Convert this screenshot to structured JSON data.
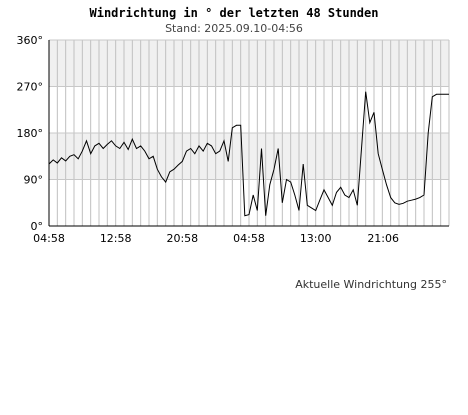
{
  "chart_data": {
    "type": "line",
    "title": "Windrichtung in ° der letzten 48 Stunden",
    "subtitle": "Stand: 2025.09.10-04:56",
    "xlabel": "",
    "ylabel": "",
    "ylim": [
      0,
      360
    ],
    "yticks": [
      {
        "value": 0,
        "label": "0°"
      },
      {
        "value": 90,
        "label": "90°"
      },
      {
        "value": 180,
        "label": "180°"
      },
      {
        "value": 270,
        "label": "270°"
      },
      {
        "value": 360,
        "label": "360°"
      }
    ],
    "xlim": [
      0,
      48
    ],
    "xticks": [
      {
        "value": 0,
        "label": "04:58"
      },
      {
        "value": 8,
        "label": "12:58"
      },
      {
        "value": 16,
        "label": "20:58"
      },
      {
        "value": 24,
        "label": "04:58"
      },
      {
        "value": 32,
        "label": "13:00"
      },
      {
        "value": 40.1,
        "label": "21:06"
      }
    ],
    "grid": true,
    "bands": [
      {
        "from": 90,
        "to": 180,
        "color": "#f0f0f0"
      },
      {
        "from": 270,
        "to": 360,
        "color": "#f0f0f0"
      }
    ],
    "line_color": "#000000",
    "series": [
      {
        "x": [
          0,
          0.5,
          1,
          1.5,
          2,
          2.5,
          3,
          3.5,
          4,
          4.5,
          5,
          5.5,
          6,
          6.5,
          7,
          7.5,
          8,
          8.5,
          9,
          9.5,
          10,
          10.5,
          11,
          11.5,
          12,
          12.5,
          13,
          13.5,
          14,
          14.5,
          15,
          15.5,
          16,
          16.5,
          17,
          17.5,
          18,
          18.5,
          19,
          19.5,
          20,
          20.5,
          21,
          21.5,
          22,
          22.5,
          23,
          23.5,
          24,
          24.5,
          25,
          25.5,
          26,
          26.5,
          27,
          27.5,
          28,
          28.5,
          29,
          29.5,
          30,
          30.5,
          31,
          31.5,
          32,
          32.5,
          33,
          33.5,
          34,
          34.5,
          35,
          35.5,
          36,
          36.5,
          37,
          37.5,
          38,
          38.5,
          39,
          39.5,
          40,
          40.5,
          41,
          41.5,
          42,
          42.5,
          43,
          43.5,
          44,
          44.5,
          45,
          45.5,
          46,
          46.5,
          47,
          47.5,
          48
        ],
        "values": [
          120,
          128,
          122,
          132,
          126,
          135,
          138,
          130,
          145,
          165,
          140,
          155,
          160,
          150,
          158,
          165,
          155,
          150,
          162,
          148,
          168,
          150,
          155,
          145,
          130,
          135,
          110,
          95,
          85,
          105,
          110,
          118,
          125,
          145,
          150,
          140,
          155,
          145,
          160,
          155,
          140,
          145,
          165,
          125,
          190,
          195,
          195,
          20,
          22,
          60,
          30,
          150,
          20,
          80,
          110,
          150,
          45,
          90,
          85,
          60,
          30,
          120,
          40,
          35,
          30,
          50,
          70,
          55,
          40,
          65,
          75,
          60,
          55,
          70,
          40,
          150,
          260,
          200,
          220,
          140,
          110,
          80,
          55,
          45,
          42,
          44,
          48,
          50,
          52,
          55,
          60,
          180,
          250,
          255,
          255,
          255,
          255
        ]
      }
    ],
    "current_label": "Aktuelle Windrichtung 255°"
  }
}
